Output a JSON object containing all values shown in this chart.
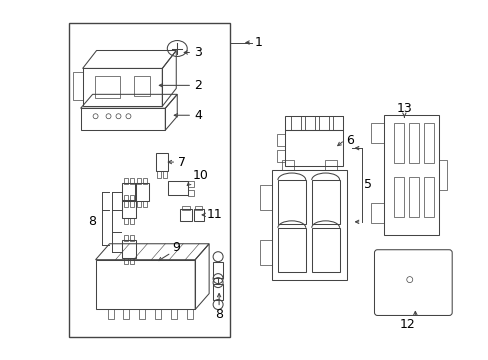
{
  "bg_color": "#ffffff",
  "line_color": "#444444",
  "text_color": "#000000",
  "figsize": [
    4.89,
    3.6
  ],
  "dpi": 100,
  "lw": 0.75
}
